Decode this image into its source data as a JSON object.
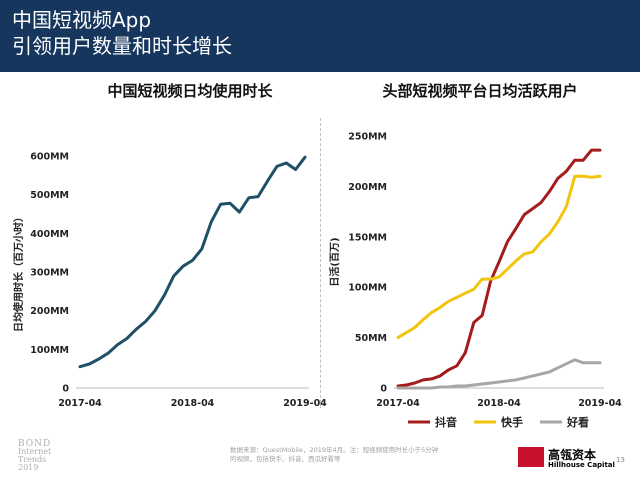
{
  "header": {
    "title_line1": "中国短视频App",
    "title_line2": "引领用户数量和时长增长",
    "background": "#17365d"
  },
  "left_chart_title": "中国短视频日均使用时长",
  "right_chart_title": "头部短视频平台日均活跃用户",
  "footer": {
    "source_line1": "数据来源：QuestMobile，2019年4月。注：短视频使用时长小于5分钟",
    "source_line2": "的视频，包括快手、抖音、西瓜好看等",
    "bond_name": "BOND",
    "bond_sub": "Internet Trends",
    "bond_year": "2019",
    "logo_cn": "高瓴资本",
    "logo_en": "Hillhouse Capital",
    "logo_color": "#c8102e",
    "page_number": "13"
  },
  "chart_data": [
    {
      "type": "line",
      "title": "中国短视频日均使用时长",
      "ylabel": "日均使用时长（百万小时）",
      "ylim": [
        0,
        600
      ],
      "yticks": [
        "0",
        "100MM",
        "200MM",
        "300MM",
        "400MM",
        "500MM",
        "600MM"
      ],
      "xticks": [
        "2017-04",
        "2018-04",
        "2019-04"
      ],
      "series": [
        {
          "color": "#1f5066",
          "x": [
            "2017-04",
            "2017-05",
            "2017-06",
            "2017-07",
            "2017-08",
            "2017-09",
            "2017-10",
            "2017-11",
            "2017-12",
            "2018-01",
            "2018-02",
            "2018-03",
            "2018-04",
            "2018-05",
            "2018-06",
            "2018-07",
            "2018-08",
            "2018-09",
            "2018-10",
            "2018-11",
            "2018-12",
            "2019-01",
            "2019-02",
            "2019-03",
            "2019-04"
          ],
          "values": [
            55,
            62,
            75,
            90,
            112,
            128,
            152,
            172,
            200,
            240,
            290,
            315,
            330,
            360,
            430,
            475,
            478,
            455,
            492,
            495,
            535,
            573,
            582,
            565,
            597
          ]
        }
      ]
    },
    {
      "type": "line",
      "title": "头部短视频平台日均活跃用户",
      "ylabel": "日活(百万)",
      "ylim": [
        0,
        250
      ],
      "yticks": [
        "0",
        "50MM",
        "100MM",
        "150MM",
        "200MM",
        "250MM"
      ],
      "xticks": [
        "2017-04",
        "2018-04",
        "2019-04"
      ],
      "legend_position": "bottom",
      "x": [
        "2017-04",
        "2017-05",
        "2017-06",
        "2017-07",
        "2017-08",
        "2017-09",
        "2017-10",
        "2017-11",
        "2017-12",
        "2018-01",
        "2018-02",
        "2018-03",
        "2018-04",
        "2018-05",
        "2018-06",
        "2018-07",
        "2018-08",
        "2018-09",
        "2018-10",
        "2018-11",
        "2018-12",
        "2019-01",
        "2019-02",
        "2019-03",
        "2019-04"
      ],
      "series": [
        {
          "name": "抖音",
          "color": "#a51c1c",
          "values": [
            2,
            3,
            5,
            8,
            9,
            12,
            18,
            22,
            35,
            65,
            72,
            106,
            125,
            145,
            158,
            172,
            178,
            184,
            195,
            208,
            215,
            226,
            226,
            236,
            236
          ]
        },
        {
          "name": "快手",
          "color": "#f2c40e",
          "values": [
            50,
            55,
            60,
            68,
            75,
            80,
            86,
            90,
            94,
            98,
            108,
            108,
            110,
            118,
            126,
            133,
            135,
            145,
            153,
            165,
            180,
            210,
            210,
            209,
            210
          ]
        },
        {
          "name": "好看",
          "color": "#a6a6a6",
          "values": [
            0,
            0,
            0,
            0,
            0,
            1,
            1,
            2,
            2,
            3,
            4,
            5,
            6,
            7,
            8,
            10,
            12,
            14,
            16,
            20,
            24,
            28,
            25,
            25,
            25
          ]
        }
      ]
    }
  ]
}
